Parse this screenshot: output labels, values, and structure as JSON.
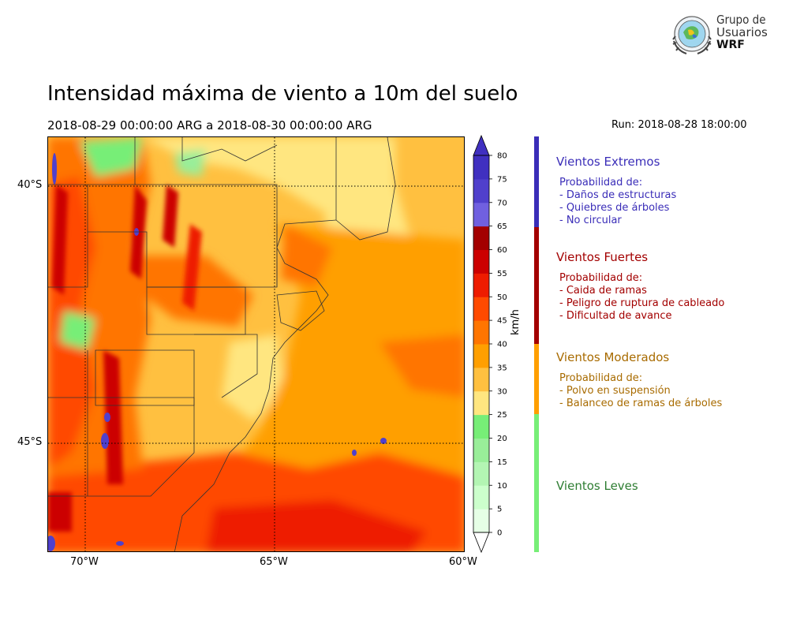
{
  "header": {
    "title": "Intensidad máxima de viento a 10m del suelo",
    "period": "2018-08-29 00:00:00 ARG  a  2018-08-30 00:00:00 ARG",
    "run": "Run: 2018-08-28 18:00:00"
  },
  "logo": {
    "line1": "Grupo de",
    "line2": "Usuarios",
    "line3": "WRF"
  },
  "map": {
    "lat_labels": [
      "40°S",
      "45°S"
    ],
    "lon_labels": [
      "70°W",
      "65°W",
      "60°W"
    ],
    "gridlines": "dotted"
  },
  "colorbar": {
    "unit": "km/h",
    "ticks": [
      "0",
      "5",
      "10",
      "15",
      "20",
      "25",
      "30",
      "35",
      "40",
      "45",
      "50",
      "55",
      "60",
      "65",
      "70",
      "75",
      "80"
    ],
    "colors": [
      "#e6ffe6",
      "#ccffcc",
      "#b3f5b3",
      "#99ee99",
      "#77ee77",
      "#ffe680",
      "#ffc040",
      "#ff9f00",
      "#ff7500",
      "#ff4a00",
      "#ee1c00",
      "#cc0000",
      "#a30000",
      "#7060e0",
      "#5040cc",
      "#4030c0"
    ],
    "extend": "both"
  },
  "categories": [
    {
      "name": "Vientos Extremos",
      "color": "#3a2db8",
      "heading": " Probabilidad de:",
      "items": [
        "- Daños de estructuras",
        "- Quiebres de árboles",
        "- No circular"
      ]
    },
    {
      "name": "Vientos Fuertes",
      "color": "#a30000",
      "heading": " Probabilidad de:",
      "items": [
        "- Caida de ramas",
        "- Peligro de ruptura de cableado",
        "- Dificultad de avance"
      ]
    },
    {
      "name": "Vientos Moderados",
      "color": "#a86b00",
      "bar_color": "#ff9f00",
      "heading": " Probabilidad de:",
      "items": [
        "- Polvo en suspensión",
        "- Balanceo de ramas de árboles"
      ]
    },
    {
      "name": "Vientos Leves",
      "color": "#2e7d32",
      "bar_color": "#77ee77"
    }
  ]
}
